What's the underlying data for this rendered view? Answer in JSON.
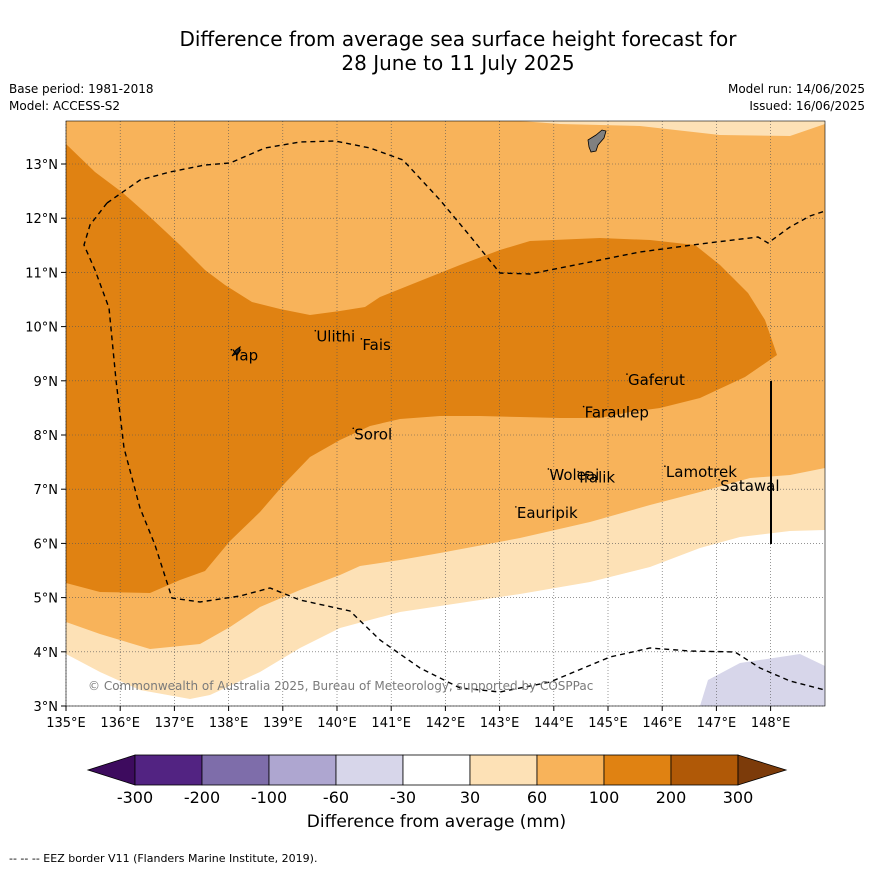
{
  "title_line1": "Difference from average sea surface height forecast for",
  "title_line2": "28 June to 11 July 2025",
  "base_period": "Base period: 1981-2018",
  "model": "Model: ACCESS-S2",
  "model_run": "Model run: 14/06/2025",
  "issued": "Issued: 16/06/2025",
  "map": {
    "lon_range": [
      135,
      149
    ],
    "lat_range": [
      3,
      13.8
    ],
    "lon_ticks": [
      "135°E",
      "136°E",
      "137°E",
      "138°E",
      "139°E",
      "140°E",
      "141°E",
      "142°E",
      "143°E",
      "144°E",
      "145°E",
      "146°E",
      "147°E",
      "148°E"
    ],
    "lat_ticks": [
      "3°N",
      "4°N",
      "5°N",
      "6°N",
      "7°N",
      "8°N",
      "9°N",
      "10°N",
      "11°N",
      "12°N",
      "13°N"
    ],
    "places": [
      {
        "name": "Yap",
        "lon": 138.05,
        "lat": 9.5
      },
      {
        "name": "Ulithi",
        "lon": 139.6,
        "lat": 9.85
      },
      {
        "name": "Fais",
        "lon": 140.45,
        "lat": 9.7
      },
      {
        "name": "Gaferut",
        "lon": 145.35,
        "lat": 9.05
      },
      {
        "name": "Faraulep",
        "lon": 144.55,
        "lat": 8.45
      },
      {
        "name": "Sorol",
        "lon": 140.3,
        "lat": 8.05
      },
      {
        "name": "Lamotrek",
        "lon": 146.05,
        "lat": 7.35
      },
      {
        "name": "Satawal",
        "lon": 147.05,
        "lat": 7.1
      },
      {
        "name": "Woleai",
        "lon": 143.9,
        "lat": 7.3
      },
      {
        "name": "Ifalik",
        "lon": 144.45,
        "lat": 7.25
      },
      {
        "name": "Eauripik",
        "lon": 143.3,
        "lat": 6.6
      }
    ],
    "copyright": "© Commonwealth of Australia 2025, Bureau of Meteorology, supported by COSPPac"
  },
  "legend": {
    "title": "Difference from average (mm)",
    "tick_labels": [
      "-300",
      "-200",
      "-100",
      "-60",
      "-30",
      "30",
      "60",
      "100",
      "200",
      "300"
    ],
    "colors": [
      "#3d0b5e",
      "#522382",
      "#7e6daa",
      "#aea6d0",
      "#d7d6ea",
      "#ffffff",
      "#fde1b6",
      "#f8b35a",
      "#e08212",
      "#b05907",
      "#7c3b0a"
    ]
  },
  "footer_note": "--  --  -- EEZ border V11 (Flanders Marine Institute, 2019)."
}
